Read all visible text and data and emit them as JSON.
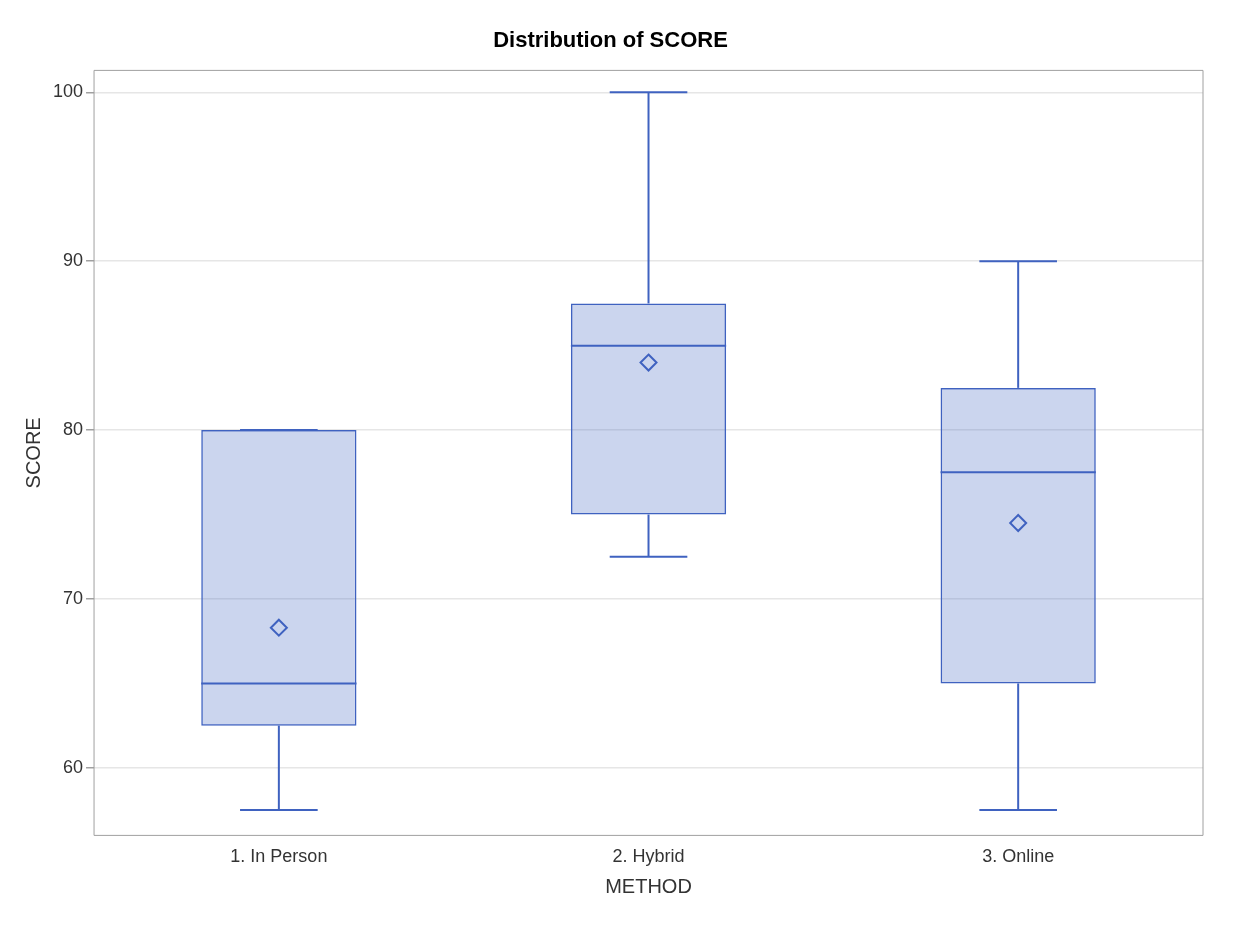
{
  "chart_data": {
    "type": "box",
    "title": "Distribution of SCORE",
    "xlabel": "METHOD",
    "ylabel": "SCORE",
    "categories": [
      "1. In Person",
      "2. Hybrid",
      "3. Online"
    ],
    "boxes": [
      {
        "low": 57.5,
        "q1": 62.5,
        "median": 65,
        "q3": 80,
        "high": 80,
        "mean": 68.3
      },
      {
        "low": 72.5,
        "q1": 75,
        "median": 85,
        "q3": 87.5,
        "high": 100,
        "mean": 84
      },
      {
        "low": 57.5,
        "q1": 65,
        "median": 77.5,
        "q3": 82.5,
        "high": 90,
        "mean": 74.5
      }
    ],
    "color": "#3f62c0",
    "ylim": [
      56,
      101.3
    ],
    "yticks": [
      60,
      70,
      80,
      90,
      100
    ],
    "grid": "y",
    "legend": false,
    "marker": "diamond"
  }
}
